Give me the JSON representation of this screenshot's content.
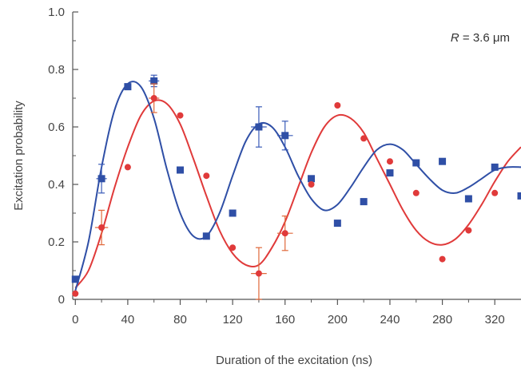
{
  "chart_data": {
    "type": "scatter",
    "xlabel": "Duration of the excitation (ns)",
    "ylabel": "Excitation probability",
    "xlim": [
      -2,
      340
    ],
    "ylim": [
      0,
      1.0
    ],
    "xticks": [
      "0",
      "40",
      "80",
      "120",
      "160",
      "200",
      "240",
      "280",
      "320"
    ],
    "yticks": [
      "0",
      "0.2",
      "0.4",
      "0.6",
      "0.8",
      "1.0"
    ],
    "annotation": {
      "symbol": "R",
      "text": " = 3.6 μm",
      "position": "top-right"
    },
    "series": [
      {
        "marker": "square",
        "color": "#2f4fa6",
        "points": [
          {
            "x": 0,
            "y": 0.07
          },
          {
            "x": 20,
            "y": 0.42,
            "yerr": 0.05,
            "xerr": 4
          },
          {
            "x": 40,
            "y": 0.74
          },
          {
            "x": 60,
            "y": 0.76,
            "yerr": 0.02,
            "xerr": 4
          },
          {
            "x": 80,
            "y": 0.45
          },
          {
            "x": 100,
            "y": 0.22
          },
          {
            "x": 120,
            "y": 0.3
          },
          {
            "x": 140,
            "y": 0.6,
            "yerr": 0.07,
            "xerr": 6
          },
          {
            "x": 160,
            "y": 0.57,
            "yerr": 0.05,
            "xerr": 6
          },
          {
            "x": 180,
            "y": 0.42
          },
          {
            "x": 200,
            "y": 0.265
          },
          {
            "x": 220,
            "y": 0.34
          },
          {
            "x": 240,
            "y": 0.44
          },
          {
            "x": 260,
            "y": 0.475
          },
          {
            "x": 280,
            "y": 0.48
          },
          {
            "x": 300,
            "y": 0.35
          },
          {
            "x": 320,
            "y": 0.46
          },
          {
            "x": 340,
            "y": 0.36
          }
        ],
        "fit": {
          "x": [
            0,
            10,
            20,
            30,
            40,
            50,
            60,
            70,
            80,
            90,
            100,
            110,
            120,
            130,
            140,
            150,
            160,
            170,
            180,
            190,
            200,
            210,
            220,
            230,
            240,
            250,
            260,
            270,
            280,
            290,
            300,
            310,
            320,
            330,
            340
          ],
          "y": [
            0.03,
            0.2,
            0.46,
            0.66,
            0.75,
            0.74,
            0.63,
            0.45,
            0.3,
            0.22,
            0.22,
            0.3,
            0.43,
            0.55,
            0.61,
            0.6,
            0.53,
            0.43,
            0.35,
            0.31,
            0.33,
            0.39,
            0.46,
            0.52,
            0.54,
            0.52,
            0.47,
            0.42,
            0.38,
            0.37,
            0.39,
            0.42,
            0.45,
            0.46,
            0.46
          ]
        }
      },
      {
        "marker": "circle",
        "color": "#e03a3a",
        "points": [
          {
            "x": 0,
            "y": 0.02
          },
          {
            "x": 20,
            "y": 0.25,
            "yerr": 0.06,
            "xerr": 5
          },
          {
            "x": 40,
            "y": 0.46
          },
          {
            "x": 60,
            "y": 0.7,
            "yerr": 0.05,
            "xerr": 4
          },
          {
            "x": 80,
            "y": 0.64
          },
          {
            "x": 100,
            "y": 0.43
          },
          {
            "x": 120,
            "y": 0.18
          },
          {
            "x": 140,
            "y": 0.09,
            "yerr": 0.09,
            "xerr": 6
          },
          {
            "x": 160,
            "y": 0.23,
            "yerr": 0.06,
            "xerr": 6
          },
          {
            "x": 180,
            "y": 0.4
          },
          {
            "x": 200,
            "y": 0.675
          },
          {
            "x": 220,
            "y": 0.56
          },
          {
            "x": 240,
            "y": 0.48
          },
          {
            "x": 260,
            "y": 0.37
          },
          {
            "x": 280,
            "y": 0.14
          },
          {
            "x": 300,
            "y": 0.24
          },
          {
            "x": 320,
            "y": 0.37
          }
        ],
        "fit": {
          "x": [
            0,
            10,
            20,
            30,
            40,
            50,
            60,
            70,
            80,
            90,
            100,
            110,
            120,
            130,
            140,
            150,
            160,
            170,
            180,
            190,
            200,
            210,
            220,
            230,
            240,
            250,
            260,
            270,
            280,
            290,
            300,
            310,
            320,
            330,
            340
          ],
          "y": [
            0.04,
            0.1,
            0.23,
            0.39,
            0.53,
            0.64,
            0.69,
            0.68,
            0.61,
            0.49,
            0.36,
            0.24,
            0.16,
            0.12,
            0.12,
            0.18,
            0.27,
            0.39,
            0.51,
            0.6,
            0.64,
            0.63,
            0.58,
            0.49,
            0.4,
            0.31,
            0.24,
            0.2,
            0.19,
            0.21,
            0.26,
            0.33,
            0.41,
            0.48,
            0.53
          ]
        }
      }
    ]
  }
}
